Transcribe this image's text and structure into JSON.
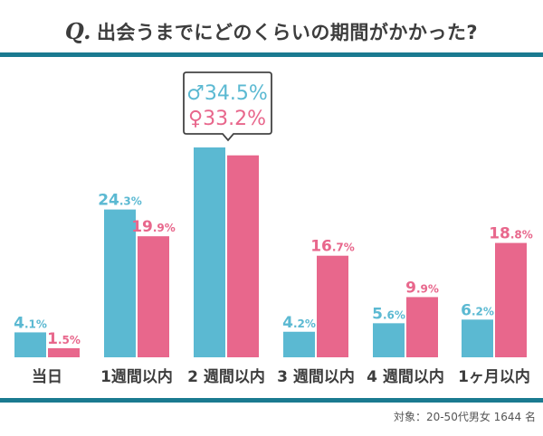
{
  "title": {
    "prefix": "Q.",
    "text": "出会うまでにどのくらいの期間がかかった?"
  },
  "note": "対象：20-50代男女 1644 名",
  "colors": {
    "male": "#5bb9d2",
    "female": "#e8678c",
    "rule": "#1a7a90",
    "text": "#3d3d3d"
  },
  "chart_data": {
    "type": "bar",
    "categories": [
      "当日",
      "1週間以内",
      "2 週間以内",
      "3 週間以内",
      "4 週間以内",
      "1ヶ月以内"
    ],
    "series": [
      {
        "name": "♂",
        "values": [
          4.1,
          24.3,
          34.5,
          4.2,
          5.6,
          6.2
        ]
      },
      {
        "name": "♀",
        "values": [
          1.5,
          19.9,
          33.2,
          16.7,
          9.9,
          18.8
        ]
      }
    ],
    "unit": "%",
    "callout": {
      "category": "2 週間以内",
      "male": "♂34.5%",
      "female": "♀33.2%"
    },
    "ylim": [
      0,
      35
    ],
    "grid": false,
    "legend": "none"
  }
}
